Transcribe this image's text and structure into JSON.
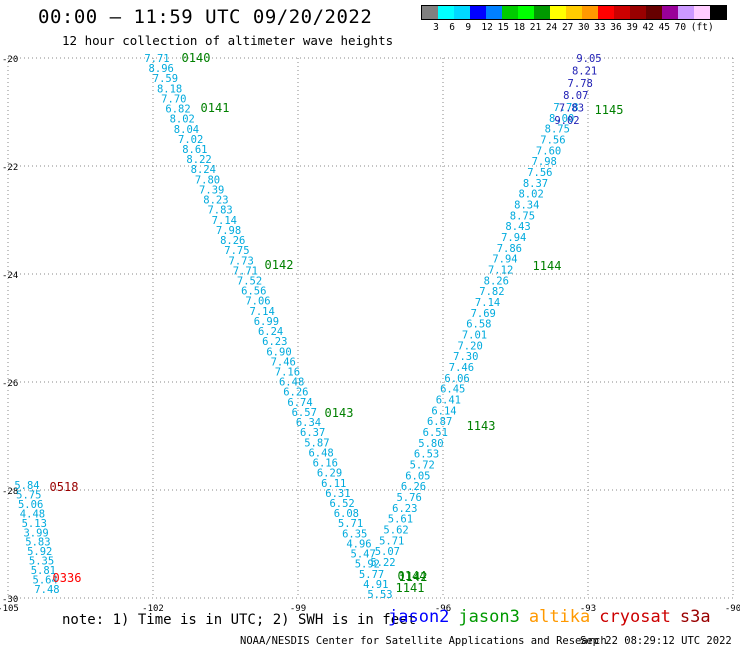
{
  "header": {
    "title": "00:00 – 11:59 UTC 09/20/2022",
    "subtitle": "12 hour collection of altimeter wave heights"
  },
  "colorbar": {
    "colors": [
      "#808080",
      "#00ffff",
      "#00d8ff",
      "#0000ff",
      "#0080ff",
      "#00cc00",
      "#00ff00",
      "#009900",
      "#ffff00",
      "#ffcc00",
      "#ff9900",
      "#ff0000",
      "#cc0000",
      "#990000",
      "#660000",
      "#990099",
      "#cc99ff",
      "#ffccff",
      "#000000"
    ],
    "labels": [
      "3",
      "6",
      "9",
      "12",
      "15",
      "18",
      "21",
      "24",
      "27",
      "30",
      "33",
      "36",
      "39",
      "42",
      "45",
      "70",
      "(ft)"
    ]
  },
  "map": {
    "lon_range": [
      -105,
      -90
    ],
    "lat_range": [
      -30,
      -20
    ],
    "x_ticks": [
      "-105",
      "-102",
      "-99",
      "-96",
      "-93",
      "-90"
    ],
    "y_ticks": [
      "-20",
      "-22",
      "-24",
      "-26",
      "-28",
      "-30"
    ],
    "grid": "dotted"
  },
  "tracks": {
    "descending": [
      "7.71",
      "8.96",
      "7.59",
      "8.18",
      "7.70",
      "6.82",
      "8.02",
      "8.04",
      "7.02",
      "8.61",
      "8.22",
      "8.24",
      "7.80",
      "7.39",
      "8.23",
      "7.83",
      "7.14",
      "7.98",
      "8.26",
      "7.75",
      "7.73",
      "7.71",
      "7.52",
      "6.56",
      "7.06",
      "7.14",
      "6.99",
      "6.24",
      "6.23",
      "6.90",
      "7.46",
      "7.16",
      "6.48",
      "6.26",
      "6.74",
      "6.57",
      "6.34",
      "6.37",
      "5.87",
      "6.48",
      "6.16",
      "6.29",
      "6.11",
      "6.31",
      "6.52",
      "6.08",
      "5.71",
      "6.35",
      "4.96",
      "5.47",
      "5.92",
      "5.77",
      "4.91",
      "5.53"
    ],
    "ascending_bottom": [
      "5.22",
      "5.07",
      "5.71",
      "5.62",
      "5.61",
      "6.23",
      "5.76",
      "6.26",
      "6.05",
      "5.72",
      "6.53",
      "5.80",
      "6.51",
      "6.87",
      "6.14",
      "6.41",
      "6.45",
      "6.06",
      "7.46",
      "7.30",
      "7.20",
      "7.01",
      "6.58",
      "7.69",
      "7.14",
      "7.82",
      "8.26",
      "7.12",
      "7.94",
      "7.86",
      "7.94",
      "8.43",
      "8.75",
      "8.34",
      "8.02",
      "8.37",
      "7.56",
      "7.98",
      "7.60",
      "7.56",
      "8.75",
      "8.00",
      "7.78"
    ],
    "ascending_top": [
      "9.05",
      "8.21",
      "7.78",
      "8.07",
      "7.83",
      "9.02"
    ],
    "left_cluster": [
      "5.84",
      "5.75",
      "5.06",
      "4.48",
      "5.13",
      "3.99",
      "5.83",
      "5.92",
      "5.35",
      "5.81",
      "5.64",
      "7.48"
    ]
  },
  "time_labels": [
    {
      "text": "0140",
      "color": "#008000"
    },
    {
      "text": "0141",
      "color": "#008000"
    },
    {
      "text": "0142",
      "color": "#008000"
    },
    {
      "text": "0143",
      "color": "#008000"
    },
    {
      "text": "0144",
      "color": "#008000"
    },
    {
      "text": "1145",
      "color": "#008000"
    },
    {
      "text": "1144",
      "color": "#008000"
    },
    {
      "text": "1143",
      "color": "#008000"
    },
    {
      "text": "1142",
      "color": "#008000"
    },
    {
      "text": "1141",
      "color": "#008000"
    },
    {
      "text": "0518",
      "color": "#990000"
    },
    {
      "text": "0336",
      "color": "#ff0000"
    }
  ],
  "footer": {
    "note": "note: 1) Time is in UTC; 2) SWH is in feet",
    "legend": [
      {
        "name": "jason2",
        "color": "#0000ff"
      },
      {
        "name": "jason3",
        "color": "#009900"
      },
      {
        "name": "altika",
        "color": "#ff9900"
      },
      {
        "name": "cryosat",
        "color": "#cc0000"
      },
      {
        "name": "s3a",
        "color": "#990000"
      }
    ],
    "credit": "NOAA/NESDIS Center for Satellite Applications and Research",
    "timestamp": "Sep 22 08:29:12 UTC 2022"
  },
  "swh_text_color": "#00aadd",
  "swh_alt_color": "#1e1eb4"
}
